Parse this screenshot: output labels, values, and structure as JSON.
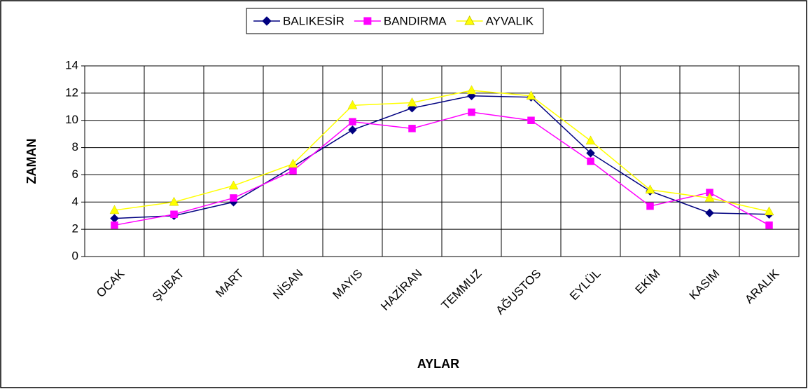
{
  "chart_data": {
    "type": "line",
    "x_label": "AYLAR",
    "y_label": "ZAMAN",
    "categories": [
      "OCAK",
      "ŞUBAT",
      "MART",
      "NİSAN",
      "MAYIS",
      "HAZİRAN",
      "TEMMUZ",
      "AĞUSTOS",
      "EYLÜL",
      "EKİM",
      "KASIM",
      "ARALIK"
    ],
    "series": [
      {
        "name": "BALIKESİR",
        "color": "#000080",
        "marker": "diamond",
        "values": [
          2.8,
          3.0,
          4.0,
          6.6,
          9.3,
          10.9,
          11.8,
          11.7,
          7.6,
          4.8,
          3.2,
          3.1
        ]
      },
      {
        "name": "BANDIRMA",
        "color": "#ff00ff",
        "marker": "square",
        "values": [
          2.3,
          3.1,
          4.3,
          6.3,
          9.9,
          9.4,
          10.6,
          10.0,
          7.0,
          3.7,
          4.7,
          2.3
        ]
      },
      {
        "name": "AYVALIK",
        "color": "#ffff00",
        "marker": "triangle",
        "values": [
          3.4,
          4.0,
          5.2,
          6.8,
          11.1,
          11.3,
          12.2,
          11.8,
          8.5,
          4.9,
          4.3,
          3.3
        ]
      }
    ],
    "ylim": [
      0,
      14
    ],
    "yticks": [
      0,
      2,
      4,
      6,
      8,
      10,
      12,
      14
    ],
    "grid": true,
    "legend": "top"
  }
}
